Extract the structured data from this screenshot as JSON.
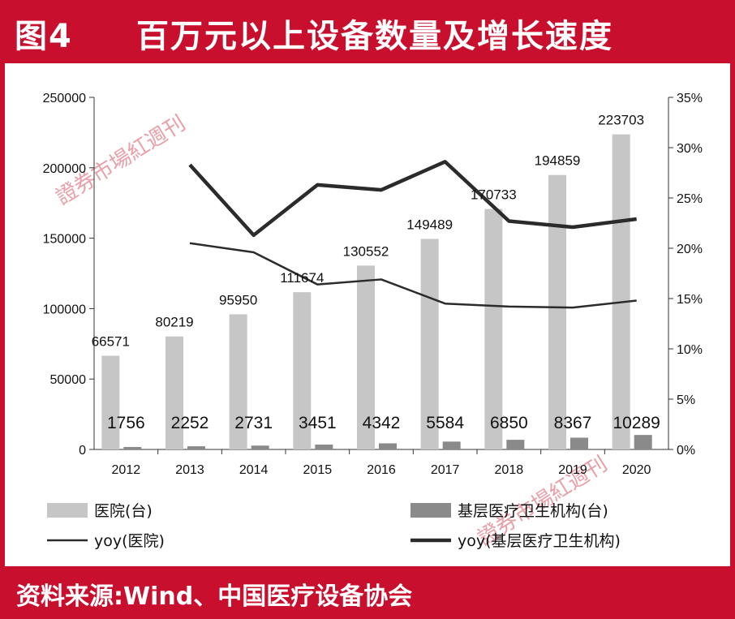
{
  "header": {
    "figure_no": "图4",
    "title": "百万元以上设备数量及增长速度"
  },
  "footer": {
    "source": "资料来源:Wind、中国医疗设备协会"
  },
  "watermark": {
    "text": "證券市場紅週刊"
  },
  "colors": {
    "brand_red": "#c8102e",
    "hospital_bar": "#c6c6c6",
    "primary_bar": "#8a8a8a",
    "line": "#2b2b2b"
  },
  "chart_data": {
    "type": "bar",
    "categories": [
      "2012",
      "2013",
      "2014",
      "2015",
      "2016",
      "2017",
      "2018",
      "2019",
      "2020"
    ],
    "series": [
      {
        "name": "医院(台)",
        "type": "bar",
        "axis": "left",
        "values": [
          66571,
          80219,
          95950,
          111674,
          130552,
          149489,
          170733,
          194859,
          223703
        ]
      },
      {
        "name": "基层医疗卫生机构(台)",
        "type": "bar",
        "axis": "left",
        "values": [
          1756,
          2252,
          2731,
          3451,
          4342,
          5584,
          6850,
          8367,
          10289
        ]
      },
      {
        "name": "yoy(医院)",
        "type": "line",
        "axis": "right",
        "values": [
          null,
          20.5,
          19.6,
          16.4,
          16.9,
          14.5,
          14.2,
          14.1,
          14.8
        ]
      },
      {
        "name": "yoy(基层医疗卫生机构)",
        "type": "line",
        "axis": "right",
        "values": [
          null,
          28.3,
          21.3,
          26.3,
          25.8,
          28.6,
          22.7,
          22.1,
          22.9
        ]
      }
    ],
    "left_axis": {
      "min": 0,
      "max": 250000,
      "ticks": [
        "0",
        "50000",
        "100000",
        "150000",
        "200000",
        "250000"
      ]
    },
    "right_axis": {
      "min": 0,
      "max": 35,
      "ticks": [
        "0%",
        "5%",
        "10%",
        "15%",
        "20%",
        "25%",
        "30%",
        "35%"
      ]
    },
    "grid": false,
    "legend": {
      "position": "bottom",
      "items": [
        "医院(台)",
        "基层医疗卫生机构(台)",
        "yoy(医院)",
        "yoy(基层医疗卫生机构)"
      ]
    }
  }
}
